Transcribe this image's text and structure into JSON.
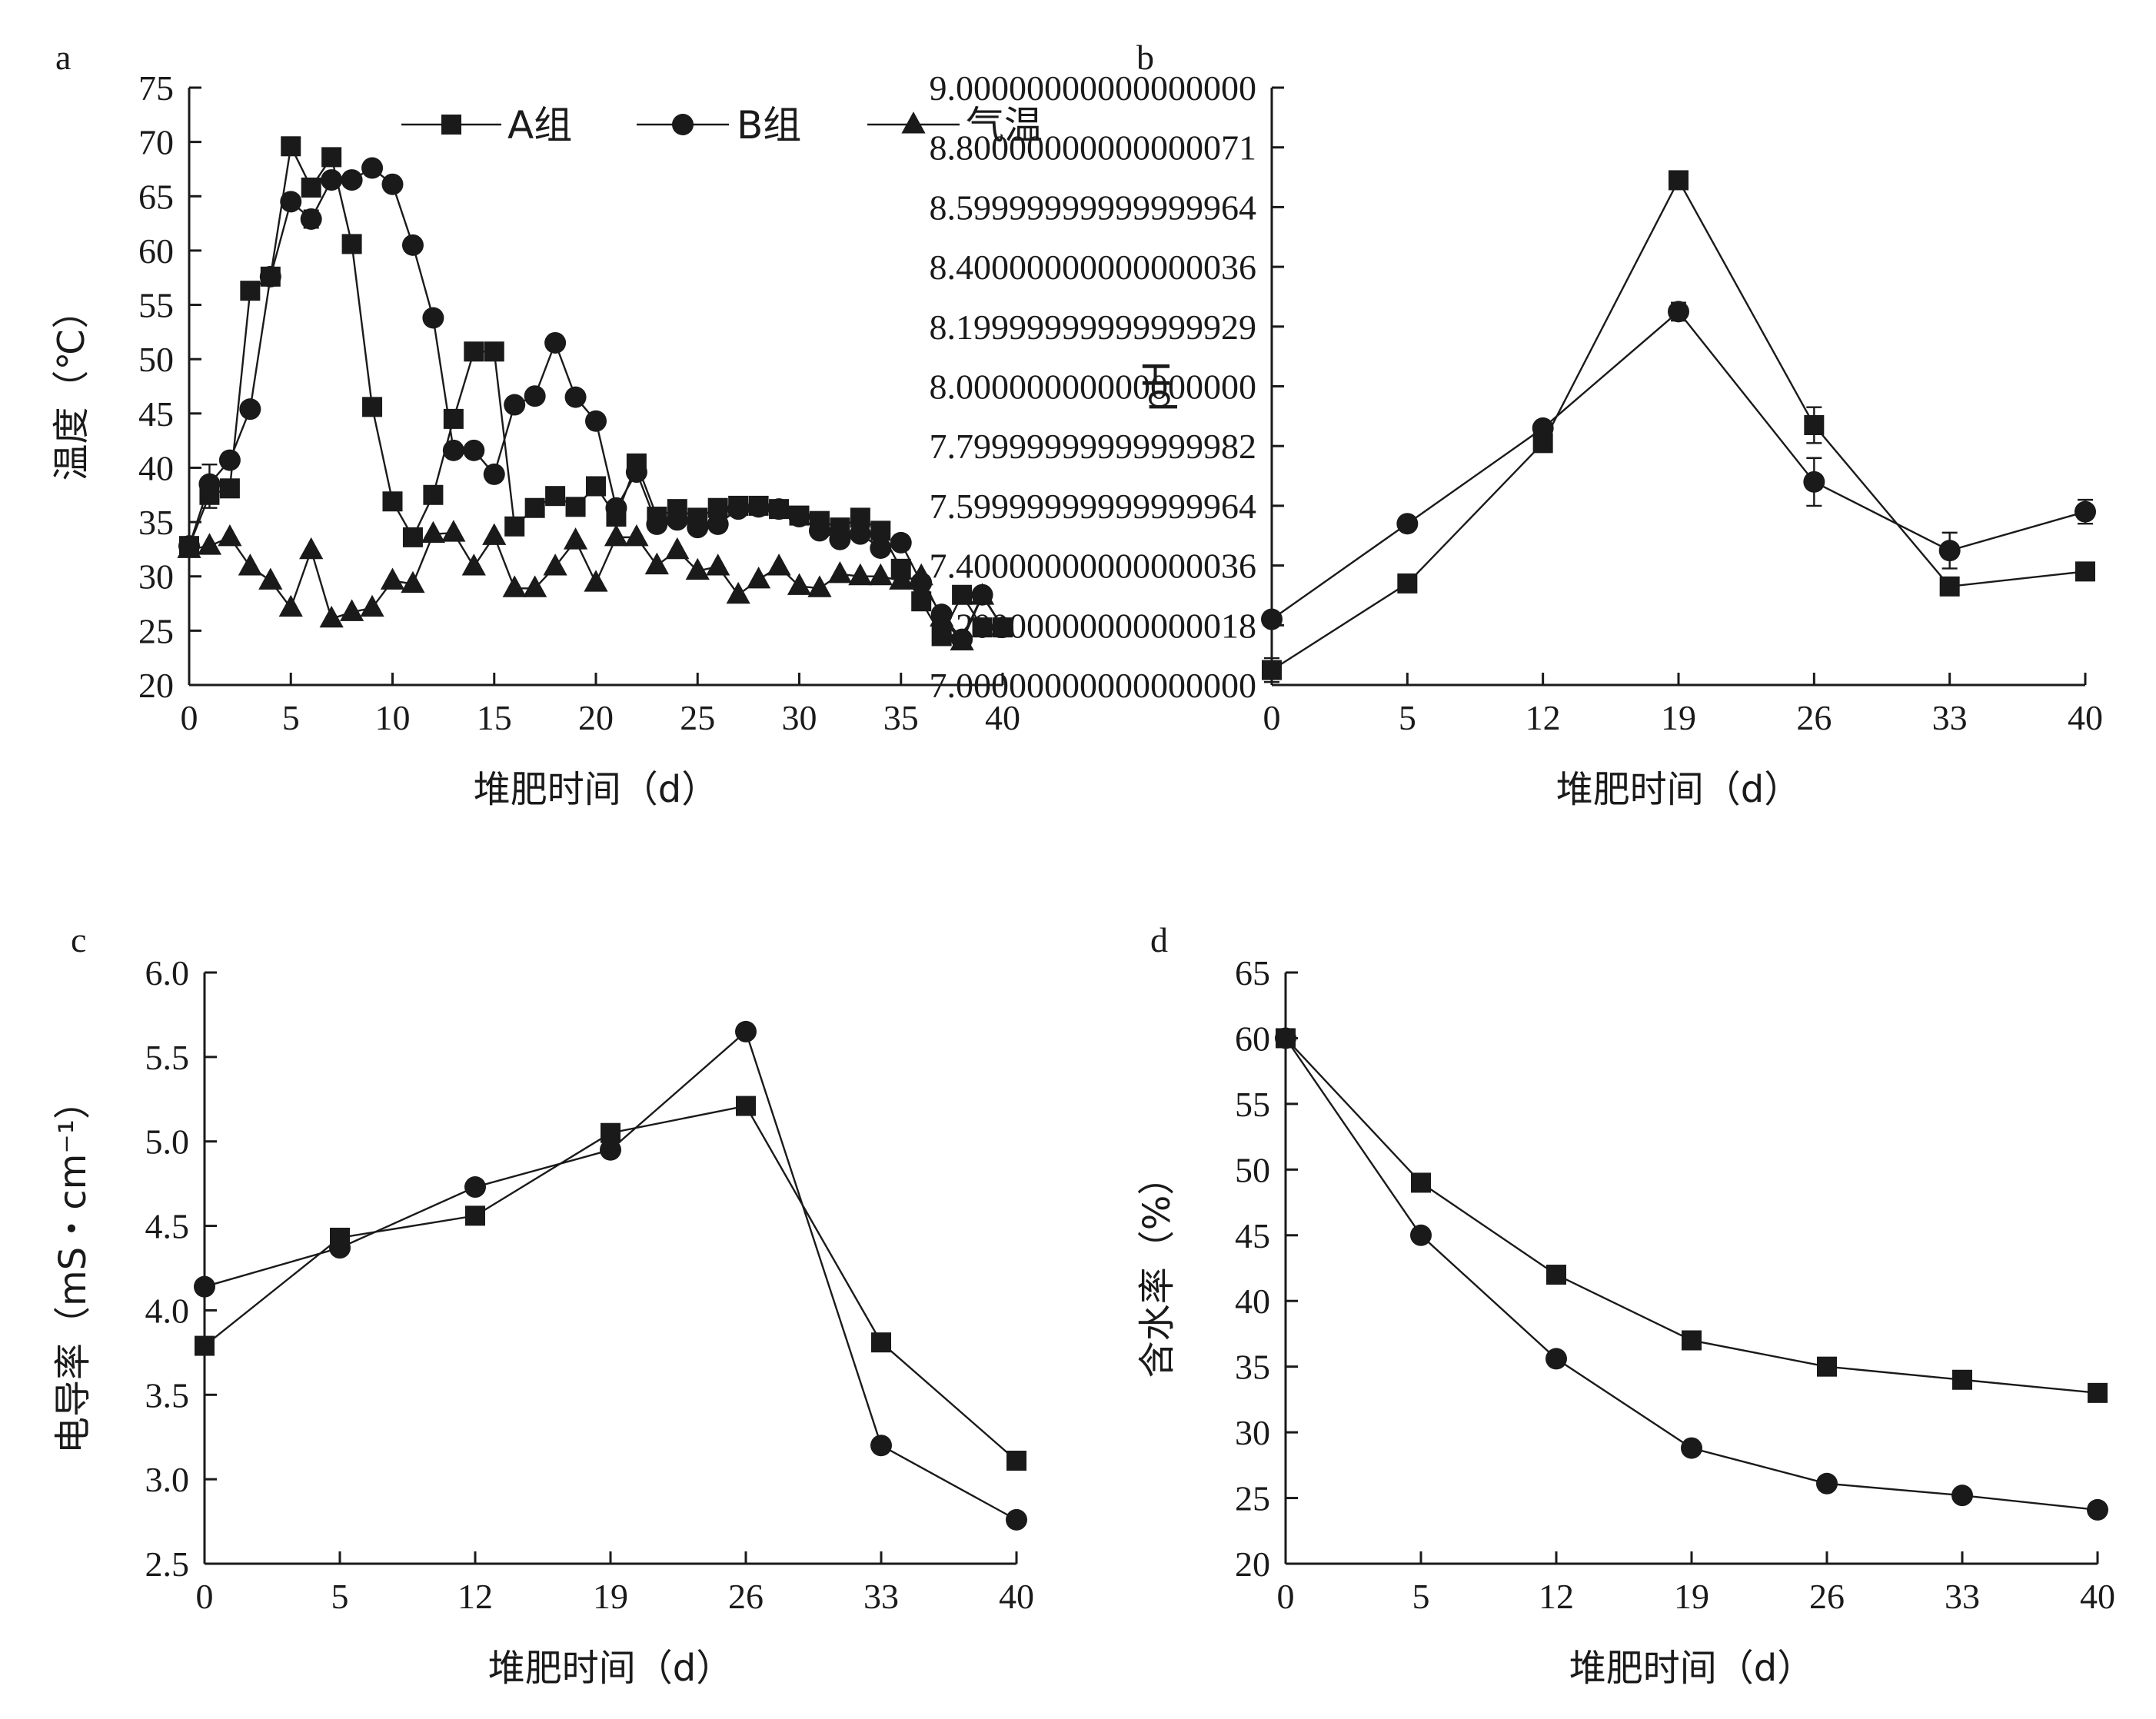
{
  "figure": {
    "x_label": "堆肥时间（d）"
  },
  "chart_data": [
    {
      "panel": "a",
      "type": "line",
      "xlabel": "堆肥时间（d）",
      "ylabel": "温度（℃）",
      "xlim": [
        0,
        40
      ],
      "ylim": [
        20,
        75
      ],
      "xticks": [
        0,
        5,
        10,
        15,
        20,
        25,
        30,
        35,
        40
      ],
      "yticks": [
        20,
        25,
        30,
        35,
        40,
        45,
        50,
        55,
        60,
        65,
        70,
        75
      ],
      "legend_position": "top-right",
      "series": [
        {
          "name": "A组",
          "marker": "square",
          "x": [
            0,
            1,
            2,
            3,
            4,
            5,
            6,
            7,
            8,
            9,
            10,
            11,
            12,
            13,
            14,
            15,
            16,
            17,
            18,
            19,
            20,
            21,
            22,
            23,
            24,
            25,
            26,
            27,
            28,
            29,
            30,
            31,
            32,
            33,
            34,
            35,
            36,
            37,
            38,
            39,
            40
          ],
          "y": [
            32.8,
            37.5,
            38.1,
            56.3,
            57.6,
            69.6,
            65.8,
            68.6,
            60.6,
            45.6,
            36.9,
            33.6,
            37.5,
            44.5,
            50.7,
            50.7,
            34.6,
            36.3,
            37.4,
            36.4,
            38.3,
            35.5,
            40.4,
            35.5,
            36.2,
            35.4,
            36.3,
            36.5,
            36.5,
            36.2,
            35.6,
            35.1,
            34.5,
            35.4,
            34.2,
            30.7,
            27.7,
            24.5,
            28.3,
            25.3,
            25.3
          ],
          "err": [
            0,
            1.2,
            0,
            0,
            0,
            0,
            0,
            0,
            0,
            0,
            0,
            0,
            0,
            0,
            0,
            0,
            0,
            0,
            0,
            0,
            0,
            0,
            0,
            0,
            0,
            0,
            0,
            0,
            0,
            0,
            0,
            0,
            0,
            0,
            0,
            0,
            0,
            0,
            0,
            0,
            0
          ]
        },
        {
          "name": "B组",
          "marker": "circle",
          "x": [
            0,
            1,
            2,
            3,
            4,
            5,
            6,
            7,
            8,
            9,
            10,
            11,
            12,
            13,
            14,
            15,
            16,
            17,
            18,
            19,
            20,
            21,
            22,
            23,
            24,
            25,
            26,
            27,
            28,
            29,
            30,
            31,
            32,
            33,
            34,
            35,
            36,
            37,
            38,
            39,
            40
          ],
          "y": [
            32.8,
            38.5,
            40.7,
            45.4,
            57.6,
            64.5,
            62.9,
            66.5,
            66.5,
            67.6,
            66.1,
            60.5,
            53.8,
            41.6,
            41.6,
            39.4,
            45.8,
            46.6,
            51.5,
            46.5,
            44.3,
            36.3,
            39.6,
            34.8,
            35.2,
            34.5,
            34.8,
            36.2,
            36.4,
            36.2,
            35.5,
            34.2,
            33.4,
            33.9,
            32.6,
            33.1,
            29.4,
            26.5,
            24.2,
            28.3,
            25.3
          ],
          "err": [
            0,
            1.8,
            0,
            0,
            0,
            0,
            0.8,
            0,
            0,
            0,
            0,
            0,
            0,
            0,
            0,
            0,
            0,
            0,
            0,
            0,
            0,
            0,
            0,
            0,
            0,
            0,
            0,
            0,
            0,
            0,
            0,
            0,
            0,
            0,
            0,
            0,
            0,
            0,
            0,
            0,
            0
          ]
        },
        {
          "name": "气温",
          "marker": "triangle",
          "x": [
            0,
            1,
            2,
            3,
            4,
            5,
            6,
            7,
            8,
            9,
            10,
            11,
            12,
            13,
            14,
            15,
            16,
            17,
            18,
            19,
            20,
            21,
            22,
            23,
            24,
            25,
            26,
            27,
            28,
            29,
            30,
            31,
            32,
            33,
            34,
            35,
            36,
            37,
            38,
            39,
            40
          ],
          "y": [
            32.5,
            32.8,
            33.6,
            30.9,
            29.6,
            27.1,
            32.4,
            26.1,
            26.7,
            27.1,
            29.6,
            29.3,
            33.9,
            34.0,
            30.9,
            33.7,
            28.9,
            28.9,
            30.9,
            33.3,
            29.4,
            33.6,
            33.6,
            31.0,
            32.4,
            30.5,
            30.9,
            28.3,
            29.7,
            30.9,
            29.1,
            28.9,
            30.2,
            30.0,
            30.0,
            29.6,
            30.0,
            26.2,
            24.0,
            28.2,
            25.3
          ],
          "err": []
        }
      ]
    },
    {
      "panel": "b",
      "type": "line",
      "xlabel": "堆肥时间（d）",
      "ylabel": "pH",
      "categories": [
        "0",
        "5",
        "12",
        "19",
        "26",
        "33",
        "40"
      ],
      "ylim": [
        7.0,
        9.0
      ],
      "yticks": [
        7.0,
        7.2,
        7.4,
        7.6,
        7.8,
        8.0,
        8.2,
        8.4,
        8.6,
        8.8,
        9.0
      ],
      "series": [
        {
          "name": "A组",
          "marker": "square",
          "values": [
            7.05,
            7.34,
            7.81,
            8.69,
            7.87,
            7.33,
            7.38
          ],
          "err": [
            0.04,
            0.01,
            0.03,
            0.01,
            0.06,
            0.01,
            0.01
          ]
        },
        {
          "name": "B组",
          "marker": "circle",
          "values": [
            7.22,
            7.54,
            7.86,
            8.25,
            7.68,
            7.45,
            7.58
          ],
          "err": [
            0.01,
            0.02,
            0.02,
            0.03,
            0.08,
            0.06,
            0.04
          ]
        }
      ]
    },
    {
      "panel": "c",
      "type": "line",
      "xlabel": "堆肥时间（d）",
      "ylabel": "电导率（mS・cm⁻¹）",
      "categories": [
        "0",
        "5",
        "12",
        "19",
        "26",
        "33",
        "40"
      ],
      "ylim": [
        2.5,
        6.0
      ],
      "yticks": [
        2.5,
        3.0,
        3.5,
        4.0,
        4.5,
        5.0,
        5.5,
        6.0
      ],
      "series": [
        {
          "name": "A组",
          "marker": "square",
          "values": [
            3.79,
            4.43,
            4.56,
            5.05,
            5.21,
            3.81,
            3.11
          ],
          "err": []
        },
        {
          "name": "B组",
          "marker": "circle",
          "values": [
            4.14,
            4.37,
            4.73,
            4.95,
            5.65,
            3.2,
            2.76
          ],
          "err": []
        }
      ]
    },
    {
      "panel": "d",
      "type": "line",
      "xlabel": "堆肥时间（d）",
      "ylabel": "含水率（%）",
      "categories": [
        "0",
        "5",
        "12",
        "19",
        "26",
        "33",
        "40"
      ],
      "ylim": [
        20,
        65
      ],
      "yticks": [
        20,
        25,
        30,
        35,
        40,
        45,
        50,
        55,
        60,
        65
      ],
      "series": [
        {
          "name": "A组",
          "marker": "square",
          "values": [
            60,
            49,
            42,
            37,
            35,
            34,
            33
          ],
          "err": [
            0,
            0.6,
            0.5,
            0,
            0,
            0,
            0
          ]
        },
        {
          "name": "B组",
          "marker": "circle",
          "values": [
            60,
            45,
            35.6,
            28.8,
            26.1,
            25.2,
            24.1
          ],
          "err": []
        }
      ]
    }
  ]
}
